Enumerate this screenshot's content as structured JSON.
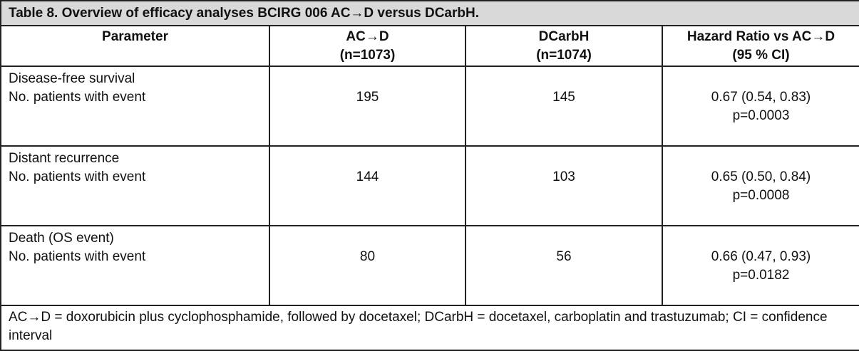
{
  "table": {
    "title": "Table 8. Overview of efficacy analyses BCIRG 006 AC→D versus DCarbH.",
    "header": [
      [
        "Parameter"
      ],
      [
        "AC→D",
        "(n=1073)"
      ],
      [
        "DCarbH",
        "(n=1074)"
      ],
      [
        "Hazard Ratio vs AC→D",
        "(95 % CI)"
      ]
    ],
    "rows": [
      {
        "parameter": [
          "Disease-free survival",
          "No. patients with event"
        ],
        "acd": 195,
        "dcarbh": 145,
        "hr": [
          "0.67 (0.54, 0.83)",
          "p=0.0003"
        ]
      },
      {
        "parameter": [
          "Distant recurrence",
          "No. patients with event"
        ],
        "acd": 144,
        "dcarbh": 103,
        "hr": [
          "0.65 (0.50, 0.84)",
          "p=0.0008"
        ]
      },
      {
        "parameter": [
          "Death (OS event)",
          "No. patients with event"
        ],
        "acd": 80,
        "dcarbh": 56,
        "hr": [
          "0.66 (0.47, 0.93)",
          "p=0.0182"
        ]
      }
    ],
    "footnote": "AC→D = doxorubicin plus cyclophosphamide, followed by docetaxel; DCarbH = docetaxel, carboplatin and trastuzumab; CI = confidence interval"
  }
}
